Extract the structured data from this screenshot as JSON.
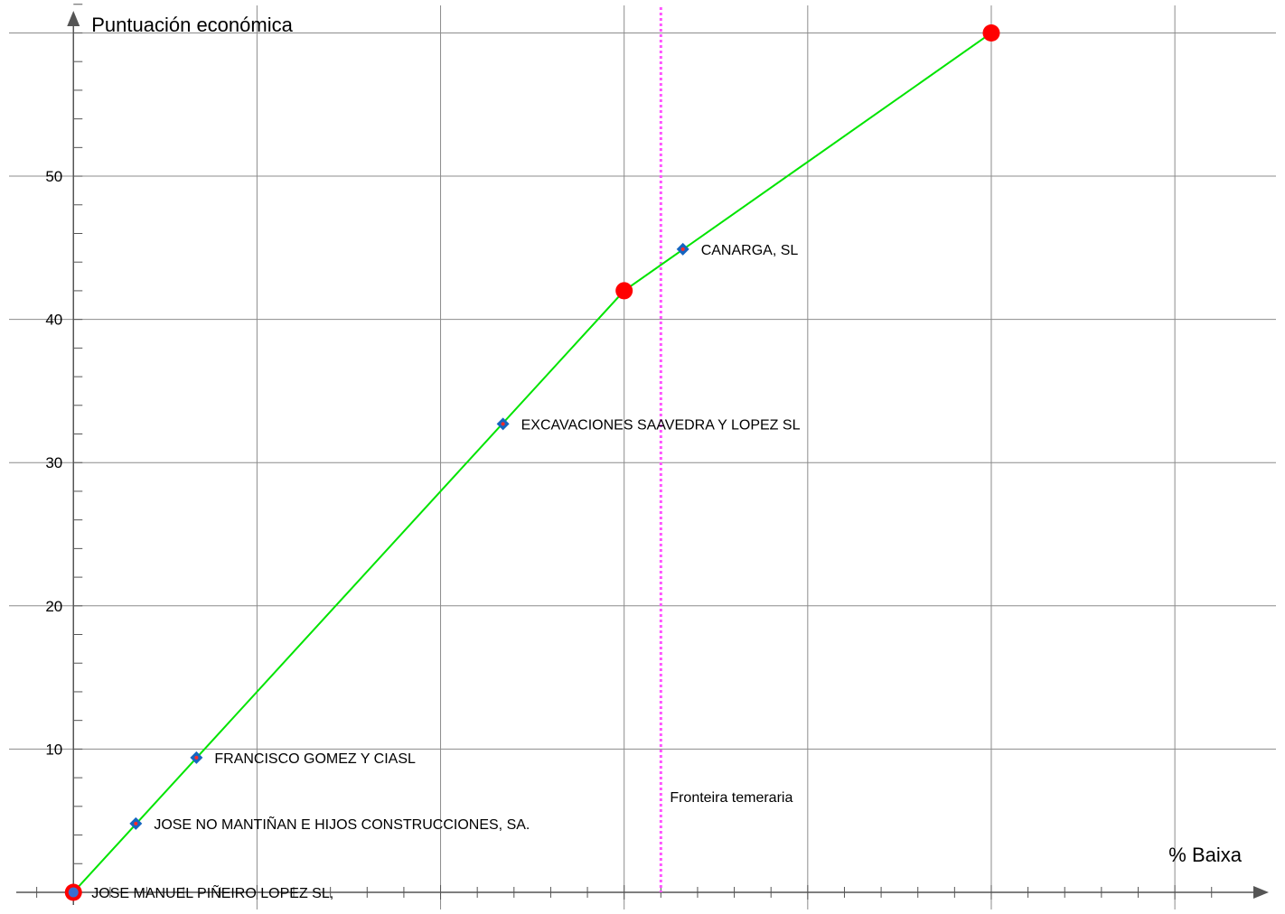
{
  "chart_data": {
    "type": "line",
    "title": "",
    "xlabel": "% Baixa",
    "ylabel": "Puntuación económica",
    "xlim": [
      -0.4,
      6.6
    ],
    "ylim": [
      -1.2,
      62.3
    ],
    "yticks": [
      10,
      20,
      30,
      40,
      50
    ],
    "grid": true,
    "colors": {
      "line": "#00e400",
      "breakpoint": "#ff0000",
      "bidder_fill": "#1565c0",
      "bidder_center": "#ff2a2a",
      "threshold": "#ff55ff",
      "grid": "#8c8c8c",
      "axis": "#555555"
    },
    "series": [
      {
        "points": [
          {
            "x": 0,
            "y": 0
          },
          {
            "x": 3,
            "y": 42
          },
          {
            "x": 5,
            "y": 60
          }
        ]
      }
    ],
    "breakpoints": [
      {
        "x": 0,
        "y": 0
      },
      {
        "x": 3,
        "y": 42
      },
      {
        "x": 5,
        "y": 60
      }
    ],
    "bidders": [
      {
        "name": "JOSE MANUEL PIÑEIRO LOPEZ SL,",
        "x": 0,
        "y": 0
      },
      {
        "name": "JOSE NO MANTIÑAN E HIJOS CONSTRUCCIONES, SA.",
        "x": 0.34,
        "y": 4.8
      },
      {
        "name": "FRANCISCO GOMEZ Y CIASL",
        "x": 0.67,
        "y": 9.4
      },
      {
        "name": "EXCAVACIONES SAAVEDRA Y LOPEZ SL",
        "x": 2.34,
        "y": 32.7
      },
      {
        "name": "CANARGA, SL",
        "x": 3.32,
        "y": 44.9
      }
    ],
    "threshold": {
      "label": "Fronteira temeraria",
      "x": 3.2,
      "label_y": 6.3
    }
  }
}
